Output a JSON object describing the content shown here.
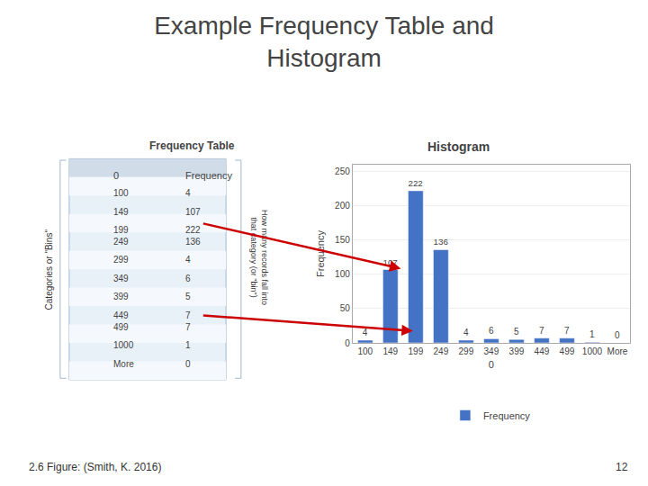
{
  "chart_data": {
    "type": "bar",
    "title": "Example Frequency Table and\nHistogram",
    "subtitle": "Histogram",
    "x_label": "0",
    "y_label": "Frequency",
    "categories": [
      "100",
      "149",
      "199",
      "249",
      "299",
      "349",
      "399",
      "449",
      "499",
      "1000",
      "More"
    ],
    "series": [
      {
        "name": "Frequency",
        "color": "#4472C4",
        "values": [
          4,
          107,
          222,
          136,
          4,
          6,
          5,
          7,
          7,
          1,
          0
        ]
      }
    ],
    "ylim": [
      0,
      260
    ],
    "yticks": [
      0,
      50,
      100,
      150,
      200,
      250
    ],
    "grid": true,
    "legend": "bottom",
    "data_labels": true,
    "table": {
      "title": "Frequency Table",
      "columns": [
        "0",
        "Frequency"
      ],
      "categories": [
        "100",
        "149",
        "199",
        "249",
        "299",
        "349",
        "399",
        "449",
        "499",
        "1000",
        "More"
      ],
      "values": [
        4,
        107,
        222,
        136,
        4,
        6,
        5,
        7,
        7,
        1,
        0
      ],
      "row_label": "Categories or \"Bins\"",
      "value_label": "How many records fall into\nthat category (or \"bin\")",
      "color": "#e8f0f8",
      "header_color": "#d0dce8",
      "stripe_color": "#f5f8fc",
      "border_color": "#a0b8d0"
    },
    "annotations": [
      "2.6 Figure: (Smith, K. 2016)",
      "12"
    ],
    "arrows": {
      "color": "#CC0000"
    }
  }
}
